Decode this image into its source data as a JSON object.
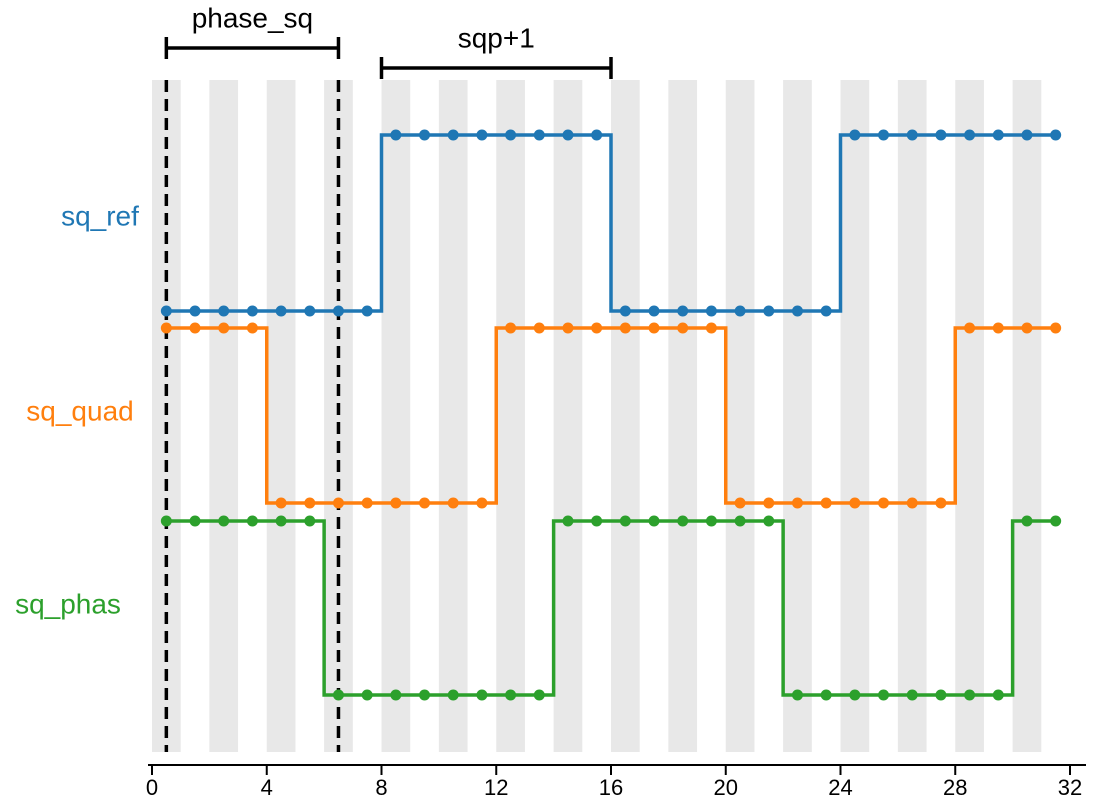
{
  "chart_data": {
    "type": "line",
    "step": "post",
    "xlim": [
      0,
      32
    ],
    "x_ticks": [
      "0",
      "4",
      "8",
      "12",
      "16",
      "20",
      "24",
      "28",
      "32"
    ],
    "x": [
      0.5,
      1.5,
      2.5,
      3.5,
      4.5,
      5.5,
      6.5,
      7.5,
      8.5,
      9.5,
      10.5,
      11.5,
      12.5,
      13.5,
      14.5,
      15.5,
      16.5,
      17.5,
      18.5,
      19.5,
      20.5,
      21.5,
      22.5,
      23.5,
      24.5,
      25.5,
      26.5,
      27.5,
      28.5,
      29.5,
      30.5,
      31.5
    ],
    "series": [
      {
        "name": "sq_ref",
        "color": "#1f77b4",
        "values": [
          0,
          0,
          0,
          0,
          0,
          0,
          0,
          0,
          1,
          1,
          1,
          1,
          1,
          1,
          1,
          1,
          0,
          0,
          0,
          0,
          0,
          0,
          0,
          0,
          1,
          1,
          1,
          1,
          1,
          1,
          1,
          1
        ]
      },
      {
        "name": "sq_quad",
        "color": "#ff7f0e",
        "values": [
          1,
          1,
          1,
          1,
          0,
          0,
          0,
          0,
          0,
          0,
          0,
          0,
          1,
          1,
          1,
          1,
          1,
          1,
          1,
          1,
          0,
          0,
          0,
          0,
          0,
          0,
          0,
          0,
          1,
          1,
          1,
          1
        ]
      },
      {
        "name": "sq_phas",
        "color": "#2ca02c",
        "values": [
          1,
          1,
          1,
          1,
          1,
          1,
          0,
          0,
          0,
          0,
          0,
          0,
          0,
          0,
          1,
          1,
          1,
          1,
          1,
          1,
          1,
          1,
          0,
          0,
          0,
          0,
          0,
          0,
          0,
          0,
          1,
          1
        ]
      }
    ],
    "shaded_bands": [
      [
        0,
        1
      ],
      [
        2,
        3
      ],
      [
        4,
        5
      ],
      [
        6,
        7
      ],
      [
        8,
        9
      ],
      [
        10,
        11
      ],
      [
        12,
        13
      ],
      [
        14,
        15
      ],
      [
        16,
        17
      ],
      [
        18,
        19
      ],
      [
        20,
        21
      ],
      [
        22,
        23
      ],
      [
        24,
        25
      ],
      [
        26,
        27
      ],
      [
        28,
        29
      ],
      [
        30,
        31
      ]
    ],
    "vlines": [
      0.5,
      6.5
    ],
    "annotations": [
      {
        "label": "phase_sq",
        "x_start": 0.5,
        "x_end": 6.5
      },
      {
        "label": "sqp+1",
        "x_start": 8,
        "x_end": 16
      }
    ]
  }
}
